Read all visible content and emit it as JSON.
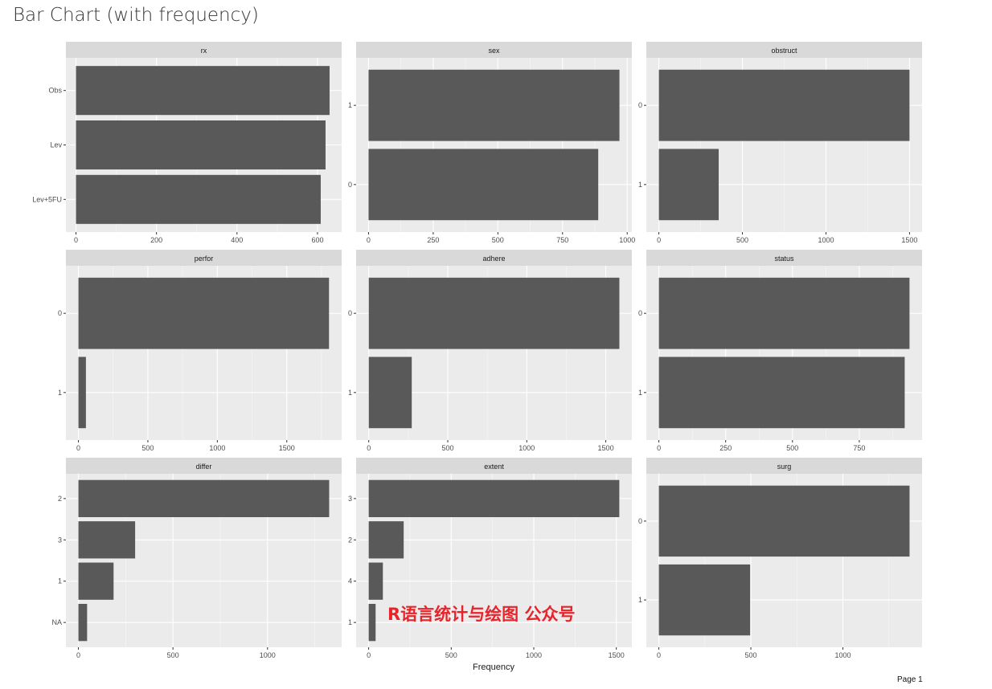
{
  "page": {
    "title": "Bar Chart (with frequency)",
    "page_label": "Page 1",
    "watermark": "R语言统计与绘图 公众号"
  },
  "colors": {
    "bar": "#595959",
    "panel_bg": "#ebebeb",
    "strip_bg": "#d9d9d9",
    "grid": "#ffffff"
  },
  "chart_data": {
    "type": "bar",
    "orientation": "horizontal",
    "xlabel": "Frequency",
    "ylabel": "",
    "grid": true,
    "panels": [
      {
        "title": "rx",
        "categories": [
          "Obs",
          "Lev",
          "Lev+5FU"
        ],
        "values": [
          630,
          620,
          608
        ],
        "xlim": [
          -25,
          660
        ],
        "ticks": [
          0,
          200,
          400,
          600
        ]
      },
      {
        "title": "sex",
        "categories": [
          "1",
          "0"
        ],
        "values": [
          970,
          888
        ],
        "xlim": [
          -48,
          1018
        ],
        "ticks": [
          0,
          250,
          500,
          750,
          1000
        ]
      },
      {
        "title": "obstruct",
        "categories": [
          "0",
          "1"
        ],
        "values": [
          1500,
          358
        ],
        "xlim": [
          -75,
          1575
        ],
        "ticks": [
          0,
          500,
          1000,
          1500
        ]
      },
      {
        "title": "perfor",
        "categories": [
          "0",
          "1"
        ],
        "values": [
          1804,
          54
        ],
        "xlim": [
          -90,
          1895
        ],
        "ticks": [
          0,
          500,
          1000,
          1500
        ]
      },
      {
        "title": "adhere",
        "categories": [
          "0",
          "1"
        ],
        "values": [
          1586,
          272
        ],
        "xlim": [
          -80,
          1665
        ],
        "ticks": [
          0,
          500,
          1000,
          1500
        ]
      },
      {
        "title": "status",
        "categories": [
          "0",
          "1"
        ],
        "values": [
          938,
          920
        ],
        "xlim": [
          -47,
          985
        ],
        "ticks": [
          0,
          250,
          500,
          750
        ]
      },
      {
        "title": "differ",
        "categories": [
          "2",
          "3",
          "1",
          "NA"
        ],
        "values": [
          1326,
          300,
          186,
          46
        ],
        "xlim": [
          -66,
          1392
        ],
        "ticks": [
          0,
          500,
          1000
        ]
      },
      {
        "title": "extent",
        "categories": [
          "3",
          "2",
          "4",
          "1"
        ],
        "values": [
          1518,
          212,
          86,
          42
        ],
        "xlim": [
          -76,
          1594
        ],
        "ticks": [
          0,
          500,
          1000,
          1500
        ]
      },
      {
        "title": "surg",
        "categories": [
          "0",
          "1"
        ],
        "values": [
          1362,
          496
        ],
        "xlim": [
          -68,
          1430
        ],
        "ticks": [
          0,
          500,
          1000
        ]
      }
    ]
  }
}
